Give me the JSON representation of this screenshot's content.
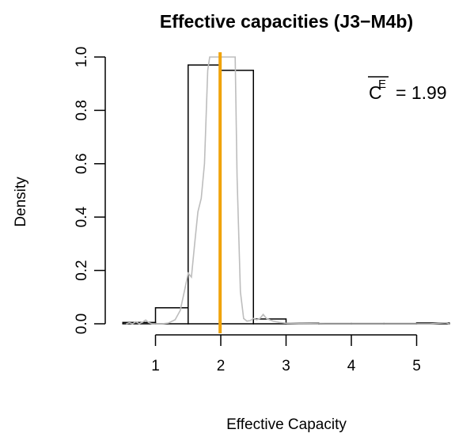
{
  "chart_data": {
    "type": "bar",
    "title": "Effective capacities (J3−M4b)",
    "xlabel": "Effective Capacity",
    "ylabel": "Density",
    "xlim": [
      0.4,
      5.6
    ],
    "ylim": [
      0,
      1.0
    ],
    "x_ticks": [
      {
        "value": 1,
        "label": "1"
      },
      {
        "value": 2,
        "label": "2"
      },
      {
        "value": 3,
        "label": "3"
      },
      {
        "value": 4,
        "label": "4"
      },
      {
        "value": 5,
        "label": "5"
      }
    ],
    "y_ticks": [
      {
        "value": 0.0,
        "label": "0.0"
      },
      {
        "value": 0.2,
        "label": "0.2"
      },
      {
        "value": 0.4,
        "label": "0.4"
      },
      {
        "value": 0.6,
        "label": "0.6"
      },
      {
        "value": 0.8,
        "label": "0.8"
      },
      {
        "value": 1.0,
        "label": "1.0"
      }
    ],
    "bins": [
      {
        "x0": 0.5,
        "x1": 1.0,
        "density": 0.005
      },
      {
        "x0": 1.0,
        "x1": 1.5,
        "density": 0.06
      },
      {
        "x0": 1.5,
        "x1": 2.0,
        "density": 0.97
      },
      {
        "x0": 2.0,
        "x1": 2.5,
        "density": 0.95
      },
      {
        "x0": 2.5,
        "x1": 3.0,
        "density": 0.018
      },
      {
        "x0": 3.0,
        "x1": 3.5,
        "density": 0.002
      },
      {
        "x0": 3.5,
        "x1": 4.0,
        "density": 0.001
      },
      {
        "x0": 4.0,
        "x1": 4.5,
        "density": 0.001
      },
      {
        "x0": 4.5,
        "x1": 5.0,
        "density": 0.001
      },
      {
        "x0": 5.0,
        "x1": 5.5,
        "density": 0.003
      }
    ],
    "density_curve": {
      "color": "#bdbdbd",
      "points": [
        [
          0.55,
          0.0
        ],
        [
          0.6,
          0.004
        ],
        [
          0.65,
          0.0
        ],
        [
          0.7,
          0.008
        ],
        [
          0.75,
          0.0
        ],
        [
          0.8,
          0.006
        ],
        [
          0.85,
          0.014
        ],
        [
          0.9,
          0.004
        ],
        [
          0.95,
          0.0
        ],
        [
          1.0,
          0.0
        ],
        [
          1.1,
          0.0
        ],
        [
          1.2,
          0.003
        ],
        [
          1.3,
          0.015
        ],
        [
          1.38,
          0.05
        ],
        [
          1.45,
          0.13
        ],
        [
          1.5,
          0.19
        ],
        [
          1.55,
          0.175
        ],
        [
          1.6,
          0.3
        ],
        [
          1.65,
          0.42
        ],
        [
          1.7,
          0.47
        ],
        [
          1.75,
          0.6
        ],
        [
          1.8,
          0.95
        ],
        [
          1.83,
          1.0
        ],
        [
          2.22,
          1.0
        ],
        [
          2.25,
          0.55
        ],
        [
          2.3,
          0.12
        ],
        [
          2.35,
          0.02
        ],
        [
          2.4,
          0.01
        ],
        [
          2.45,
          0.012
        ],
        [
          2.5,
          0.02
        ],
        [
          2.55,
          0.015
        ],
        [
          2.6,
          0.02
        ],
        [
          2.65,
          0.035
        ],
        [
          2.7,
          0.02
        ],
        [
          2.8,
          0.01
        ],
        [
          2.9,
          0.005
        ],
        [
          3.0,
          0.002
        ],
        [
          3.2,
          0.001
        ],
        [
          3.6,
          0.0
        ],
        [
          4.5,
          0.0
        ],
        [
          5.2,
          0.0
        ],
        [
          5.45,
          0.004
        ],
        [
          5.5,
          0.0
        ]
      ]
    },
    "mean_line": {
      "x": 1.99,
      "color": "#f0a30a"
    },
    "annotation": {
      "symbol": "C",
      "superscript": "E",
      "text": "= 1.99"
    }
  }
}
